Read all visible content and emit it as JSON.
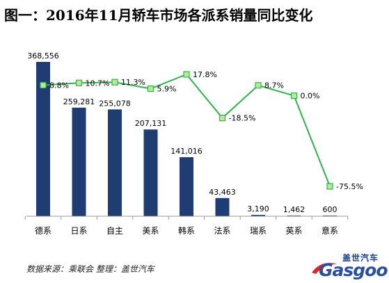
{
  "header": {
    "title": "图一：2016年11月轿车市场各派系销量同比变化"
  },
  "footer": {
    "source": "数据来源：乘联会 整理：盖世汽车"
  },
  "logo": {
    "cn": "盖世汽车",
    "text": "Gasgoo"
  },
  "colors": {
    "bar": "#1f3d73",
    "line": "#2db34a",
    "marker": "#b9e89a",
    "marker_border": "#2db34a",
    "axis": "#999999"
  },
  "chart_data": {
    "type": "bar",
    "title": "图一：2016年11月轿车市场各派系销量同比变化",
    "categories": [
      "德系",
      "日系",
      "自主",
      "美系",
      "韩系",
      "法系",
      "瑞系",
      "英系",
      "意系"
    ],
    "series": [
      {
        "type": "bar",
        "values": [
          368556,
          259281,
          255078,
          207131,
          141016,
          43463,
          3190,
          1462,
          600
        ],
        "labels": [
          "368,556",
          "259,281",
          "255,078",
          "207,131",
          "141,016",
          "43,463",
          "3,190",
          "1,462",
          "600"
        ]
      },
      {
        "type": "line",
        "values": [
          8.8,
          10.7,
          11.3,
          5.9,
          17.8,
          -18.5,
          8.7,
          0.0,
          -75.5
        ],
        "labels": [
          "8.8%",
          "10.7%",
          "11.3%",
          "5.9%",
          "17.8%",
          "-18.5%",
          "8.7%",
          "0.0%",
          "-75.5%"
        ]
      }
    ],
    "bar_ylim": [
      0,
      368556
    ],
    "line_ylim": [
      -75.5,
      17.8
    ],
    "grid": false,
    "legend": "none"
  }
}
